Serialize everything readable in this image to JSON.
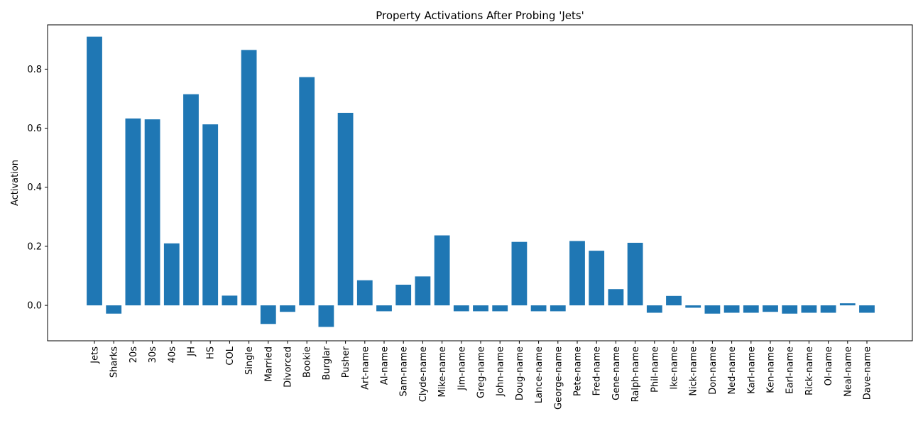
{
  "chart_data": {
    "type": "bar",
    "title": "Property Activations After Probing 'Jets'",
    "xlabel": "",
    "ylabel": "Activation",
    "ylim": [
      -0.12,
      0.95
    ],
    "yticks": [
      "0.0",
      "0.2",
      "0.4",
      "0.6",
      "0.8"
    ],
    "grid": false,
    "bar_color": "#1f77b4",
    "categories": [
      "Jets",
      "Sharks",
      "20s",
      "30s",
      "40s",
      "JH",
      "HS",
      "COL",
      "Single",
      "Married",
      "Divorced",
      "Bookie",
      "Burglar",
      "Pusher",
      "Art-name",
      "Al-name",
      "Sam-name",
      "Clyde-name",
      "Mike-name",
      "Jim-name",
      "Greg-name",
      "John-name",
      "Doug-name",
      "Lance-name",
      "George-name",
      "Pete-name",
      "Fred-name",
      "Gene-name",
      "Ralph-name",
      "Phil-name",
      "Ike-name",
      "Nick-name",
      "Don-name",
      "Ned-name",
      "Karl-name",
      "Ken-name",
      "Earl-name",
      "Rick-name",
      "Ol-name",
      "Neal-name",
      "Dave-name"
    ],
    "values": [
      0.91,
      -0.028,
      0.633,
      0.63,
      0.21,
      0.715,
      0.613,
      0.033,
      0.865,
      -0.063,
      -0.022,
      0.773,
      -0.073,
      0.652,
      0.085,
      -0.02,
      0.07,
      0.098,
      0.237,
      -0.02,
      -0.02,
      -0.02,
      0.215,
      -0.02,
      -0.02,
      0.218,
      0.185,
      0.055,
      0.212,
      -0.025,
      0.032,
      -0.008,
      -0.028,
      -0.025,
      -0.025,
      -0.022,
      -0.028,
      -0.025,
      -0.025,
      0.007,
      -0.025
    ]
  }
}
